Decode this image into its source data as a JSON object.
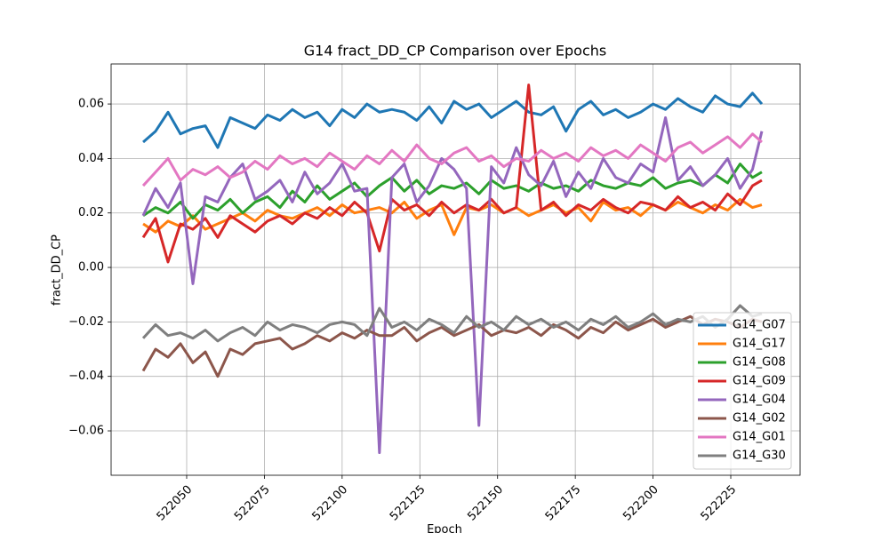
{
  "chart_data": {
    "type": "line",
    "title": "G14 fract_DD_CP Comparison over Epochs",
    "xlabel": "Epoch",
    "ylabel": "fract_DD_CP",
    "x": [
      522036,
      522040,
      522044,
      522048,
      522052,
      522056,
      522060,
      522064,
      522068,
      522072,
      522076,
      522080,
      522084,
      522088,
      522092,
      522096,
      522100,
      522104,
      522108,
      522112,
      522116,
      522120,
      522124,
      522128,
      522132,
      522136,
      522140,
      522144,
      522148,
      522152,
      522156,
      522160,
      522164,
      522168,
      522172,
      522176,
      522180,
      522184,
      522188,
      522192,
      522196,
      522200,
      522204,
      522208,
      522212,
      522216,
      522220,
      522224,
      522228,
      522232,
      522235
    ],
    "xlim": [
      522025.7,
      522247.3
    ],
    "xticks": [
      522050,
      522075,
      522100,
      522125,
      522150,
      522175,
      522200,
      522225
    ],
    "ylim": [
      -0.0763,
      0.0747
    ],
    "yticks": [
      {
        "value": -0.06,
        "label": "−0.06"
      },
      {
        "value": -0.04,
        "label": "−0.04"
      },
      {
        "value": -0.02,
        "label": "−0.02"
      },
      {
        "value": 0,
        "label": "0.00"
      },
      0.02,
      0.04,
      0.06
    ],
    "grid": true,
    "legend": "lower right",
    "series": [
      {
        "name": "G14_G07",
        "color": "#1f77b4",
        "values": [
          0.046,
          0.05,
          0.057,
          0.049,
          0.051,
          0.052,
          0.044,
          0.055,
          0.053,
          0.051,
          0.056,
          0.054,
          0.058,
          0.055,
          0.057,
          0.052,
          0.058,
          0.055,
          0.06,
          0.057,
          0.058,
          0.057,
          0.054,
          0.059,
          0.053,
          0.061,
          0.058,
          0.06,
          0.055,
          0.058,
          0.061,
          0.057,
          0.056,
          0.059,
          0.05,
          0.058,
          0.061,
          0.056,
          0.058,
          0.055,
          0.057,
          0.06,
          0.058,
          0.062,
          0.059,
          0.057,
          0.063,
          0.06,
          0.059,
          0.064,
          0.06
        ]
      },
      {
        "name": "G14_G17",
        "color": "#ff7f0e",
        "values": [
          0.016,
          0.013,
          0.017,
          0.015,
          0.019,
          0.014,
          0.016,
          0.018,
          0.02,
          0.017,
          0.021,
          0.019,
          0.018,
          0.02,
          0.022,
          0.019,
          0.023,
          0.02,
          0.021,
          0.022,
          0.02,
          0.024,
          0.018,
          0.021,
          0.023,
          0.012,
          0.022,
          0.021,
          0.023,
          0.02,
          0.022,
          0.019,
          0.021,
          0.023,
          0.02,
          0.022,
          0.017,
          0.024,
          0.021,
          0.022,
          0.019,
          0.023,
          0.021,
          0.024,
          0.022,
          0.02,
          0.023,
          0.021,
          0.025,
          0.022,
          0.023
        ]
      },
      {
        "name": "G14_G08",
        "color": "#2ca02c",
        "values": [
          0.019,
          0.022,
          0.02,
          0.024,
          0.018,
          0.023,
          0.021,
          0.025,
          0.02,
          0.024,
          0.026,
          0.022,
          0.028,
          0.024,
          0.03,
          0.025,
          0.028,
          0.031,
          0.026,
          0.03,
          0.033,
          0.028,
          0.032,
          0.027,
          0.03,
          0.029,
          0.031,
          0.027,
          0.032,
          0.029,
          0.03,
          0.028,
          0.031,
          0.029,
          0.03,
          0.028,
          0.032,
          0.03,
          0.029,
          0.031,
          0.03,
          0.033,
          0.029,
          0.031,
          0.032,
          0.03,
          0.034,
          0.031,
          0.038,
          0.033,
          0.035
        ]
      },
      {
        "name": "G14_G09",
        "color": "#d62728",
        "values": [
          0.011,
          0.018,
          0.002,
          0.016,
          0.014,
          0.018,
          0.011,
          0.019,
          0.016,
          0.013,
          0.017,
          0.019,
          0.016,
          0.02,
          0.018,
          0.022,
          0.019,
          0.024,
          0.02,
          0.006,
          0.025,
          0.021,
          0.023,
          0.019,
          0.024,
          0.02,
          0.023,
          0.021,
          0.025,
          0.02,
          0.022,
          0.067,
          0.021,
          0.024,
          0.019,
          0.023,
          0.021,
          0.025,
          0.022,
          0.02,
          0.024,
          0.023,
          0.021,
          0.026,
          0.022,
          0.024,
          0.021,
          0.027,
          0.023,
          0.03,
          0.032
        ]
      },
      {
        "name": "G14_G04",
        "color": "#9467bd",
        "values": [
          0.019,
          0.029,
          0.022,
          0.031,
          -0.006,
          0.026,
          0.024,
          0.033,
          0.038,
          0.025,
          0.028,
          0.032,
          0.024,
          0.035,
          0.027,
          0.031,
          0.038,
          0.028,
          0.029,
          -0.068,
          0.033,
          0.038,
          0.024,
          0.03,
          0.04,
          0.036,
          0.029,
          -0.058,
          0.037,
          0.031,
          0.044,
          0.034,
          0.03,
          0.039,
          0.026,
          0.035,
          0.029,
          0.04,
          0.033,
          0.031,
          0.038,
          0.035,
          0.055,
          0.032,
          0.037,
          0.03,
          0.034,
          0.04,
          0.029,
          0.036,
          0.05
        ]
      },
      {
        "name": "G14_G02",
        "color": "#8c564b",
        "values": [
          -0.038,
          -0.03,
          -0.033,
          -0.028,
          -0.035,
          -0.031,
          -0.04,
          -0.03,
          -0.032,
          -0.028,
          -0.027,
          -0.026,
          -0.03,
          -0.028,
          -0.025,
          -0.027,
          -0.024,
          -0.026,
          -0.023,
          -0.025,
          -0.025,
          -0.022,
          -0.027,
          -0.024,
          -0.022,
          -0.025,
          -0.023,
          -0.021,
          -0.025,
          -0.023,
          -0.024,
          -0.022,
          -0.025,
          -0.021,
          -0.023,
          -0.026,
          -0.022,
          -0.024,
          -0.02,
          -0.023,
          -0.021,
          -0.019,
          -0.022,
          -0.02,
          -0.018,
          -0.021,
          -0.019,
          -0.02,
          -0.022,
          -0.019,
          -0.02
        ]
      },
      {
        "name": "G14_G01",
        "color": "#e377c2",
        "values": [
          0.03,
          0.035,
          0.04,
          0.032,
          0.036,
          0.034,
          0.037,
          0.033,
          0.035,
          0.039,
          0.036,
          0.041,
          0.038,
          0.04,
          0.037,
          0.042,
          0.039,
          0.036,
          0.041,
          0.038,
          0.043,
          0.039,
          0.045,
          0.04,
          0.038,
          0.042,
          0.044,
          0.039,
          0.041,
          0.037,
          0.04,
          0.039,
          0.043,
          0.04,
          0.042,
          0.039,
          0.044,
          0.041,
          0.043,
          0.04,
          0.045,
          0.042,
          0.039,
          0.044,
          0.046,
          0.042,
          0.045,
          0.048,
          0.044,
          0.049,
          0.046
        ]
      },
      {
        "name": "G14_G30",
        "color": "#7f7f7f",
        "values": [
          -0.026,
          -0.021,
          -0.025,
          -0.024,
          -0.026,
          -0.023,
          -0.027,
          -0.024,
          -0.022,
          -0.025,
          -0.02,
          -0.023,
          -0.021,
          -0.022,
          -0.024,
          -0.021,
          -0.02,
          -0.021,
          -0.025,
          -0.015,
          -0.022,
          -0.02,
          -0.023,
          -0.019,
          -0.021,
          -0.024,
          -0.018,
          -0.022,
          -0.02,
          -0.023,
          -0.018,
          -0.021,
          -0.019,
          -0.022,
          -0.02,
          -0.023,
          -0.019,
          -0.021,
          -0.018,
          -0.022,
          -0.02,
          -0.017,
          -0.021,
          -0.019,
          -0.02,
          -0.018,
          -0.022,
          -0.019,
          -0.014,
          -0.018,
          -0.017
        ]
      }
    ]
  }
}
